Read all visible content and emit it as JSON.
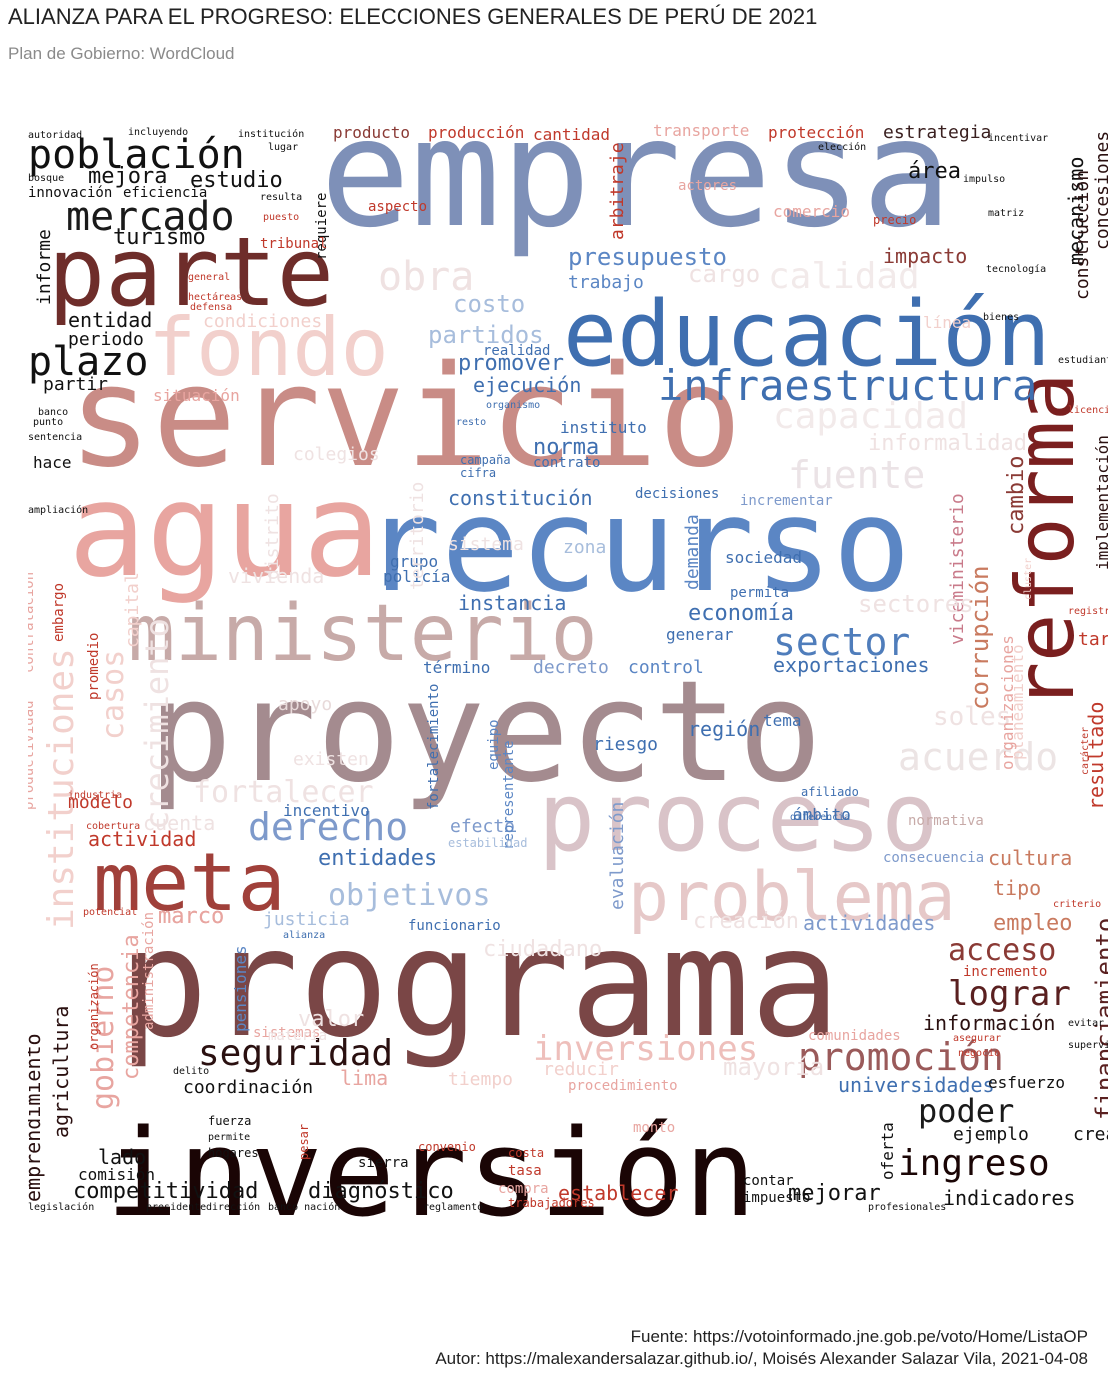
{
  "title": "ALIANZA PARA EL PROGRESO: ELECCIONES GENERALES DE PERÚ DE 2021",
  "subtitle": "Plan de Gobierno: WordCloud",
  "caption": {
    "source": "Fuente: https://votoinformado.jne.gob.pe/voto/Home/ListaOP",
    "author": "Autor: https://malexandersalazar.github.io/, Moisés Alexander Salazar Vila, 2021-04-08"
  },
  "wordcloud": {
    "colors": {
      "dark": "#1a0505",
      "brown": "#6e2d2a",
      "red": "#c0392b",
      "pink": "#e8a5a0",
      "rose": "#c98c86",
      "mauve": "#a48b8f",
      "lightmauve": "#d9c3c8",
      "blue": "#3f6fb0",
      "steel": "#7e90b8",
      "lightblue": "#a7bddc",
      "faint": "#efe2e2"
    },
    "words": [
      {
        "text": "empresa",
        "color": "#7e90b8"
      },
      {
        "text": "servicio",
        "color": "#c98c86"
      },
      {
        "text": "agua",
        "color": "#e8a5a0"
      },
      {
        "text": "recurso",
        "color": "#5b86c4"
      },
      {
        "text": "proyecto",
        "color": "#a48b8f"
      },
      {
        "text": "programa",
        "color": "#7a4646"
      },
      {
        "text": "inversión",
        "color": "#1a0505"
      },
      {
        "text": "parte",
        "color": "#6e2d2a"
      },
      {
        "text": "educación",
        "color": "#3f6fb0"
      },
      {
        "text": "fondo",
        "color": "#f2d0cc"
      },
      {
        "text": "ministerio",
        "color": "#c7aaa8"
      },
      {
        "text": "proceso",
        "color": "#d9c3c8"
      },
      {
        "text": "problema",
        "color": "#e6c8c8"
      },
      {
        "text": "meta",
        "color": "#a0403a"
      },
      {
        "text": "reforma",
        "color": "#7a1f1f"
      },
      {
        "text": "infraestructura",
        "color": "#3f6fb0"
      },
      {
        "text": "sector",
        "color": "#4f7dbb"
      },
      {
        "text": "población",
        "color": "#111111"
      },
      {
        "text": "mercado",
        "color": "#1a1a1a"
      },
      {
        "text": "plazo",
        "color": "#111111"
      },
      {
        "text": "derecho",
        "color": "#7e9acb"
      },
      {
        "text": "seguridad",
        "color": "#2a1010"
      },
      {
        "text": "promoción",
        "color": "#9a5a5a"
      },
      {
        "text": "ingreso",
        "color": "#1a0505"
      },
      {
        "text": "poder",
        "color": "#1a1a1a"
      },
      {
        "text": "lograr",
        "color": "#5a2020"
      },
      {
        "text": "acceso",
        "color": "#8a3a35"
      },
      {
        "text": "inversiones",
        "color": "#eebfbb"
      },
      {
        "text": "capacidad",
        "color": "#f2eaea"
      },
      {
        "text": "calidad",
        "color": "#f2eaea"
      },
      {
        "text": "fuente",
        "color": "#ebe3e6"
      },
      {
        "text": "acuerdo",
        "color": "#ece4e4"
      },
      {
        "text": "presupuesto",
        "color": "#5b86c4"
      },
      {
        "text": "partidos",
        "color": "#a7bddc"
      },
      {
        "text": "costo",
        "color": "#a7bddc"
      },
      {
        "text": "promover",
        "color": "#3f6fb0"
      },
      {
        "text": "ejecución",
        "color": "#3f6fb0"
      },
      {
        "text": "norma",
        "color": "#3f6fb0"
      },
      {
        "text": "constitución",
        "color": "#3f6fb0"
      },
      {
        "text": "instancia",
        "color": "#3f6fb0"
      },
      {
        "text": "economía",
        "color": "#3f6fb0"
      },
      {
        "text": "exportaciones",
        "color": "#3f6fb0"
      },
      {
        "text": "entidades",
        "color": "#3f6fb0"
      },
      {
        "text": "objetivos",
        "color": "#a7bddc"
      },
      {
        "text": "corrupción",
        "color": "#c97a5f"
      },
      {
        "text": "cambio",
        "color": "#8a3a35"
      },
      {
        "text": "mecanismo",
        "color": "#111111"
      },
      {
        "text": "impacto",
        "color": "#8a3a35"
      },
      {
        "text": "área",
        "color": "#111111"
      },
      {
        "text": "estrategia",
        "color": "#3a2020"
      },
      {
        "text": "protección",
        "color": "#c0392b"
      },
      {
        "text": "transporte",
        "color": "#e8a5a0"
      },
      {
        "text": "producción",
        "color": "#c0392b"
      },
      {
        "text": "producto",
        "color": "#8a3a35"
      },
      {
        "text": "cantidad",
        "color": "#c0392b"
      },
      {
        "text": "comercio",
        "color": "#e8a5a0"
      },
      {
        "text": "actores",
        "color": "#e8a5a0"
      },
      {
        "text": "estudio",
        "color": "#111111"
      },
      {
        "text": "mejora",
        "color": "#111111"
      },
      {
        "text": "turismo",
        "color": "#111111"
      },
      {
        "text": "entidad",
        "color": "#111111"
      },
      {
        "text": "periodo",
        "color": "#111111"
      },
      {
        "text": "partir",
        "color": "#111111"
      },
      {
        "text": "informe",
        "color": "#111111"
      },
      {
        "text": "condiciones",
        "color": "#f2d0cc"
      },
      {
        "text": "situación",
        "color": "#e8a5a0"
      },
      {
        "text": "modelo",
        "color": "#c0392b"
      },
      {
        "text": "actividad",
        "color": "#c0392b"
      },
      {
        "text": "marco",
        "color": "#e8a5a0"
      },
      {
        "text": "gobierno",
        "color": "#e8a5a0"
      },
      {
        "text": "instituciones",
        "color": "#f2d0cc"
      },
      {
        "text": "competencia",
        "color": "#e8a5a0"
      },
      {
        "text": "emprendimiento",
        "color": "#2a1010"
      },
      {
        "text": "agricultura",
        "color": "#2a1010"
      },
      {
        "text": "coordinación",
        "color": "#111111"
      },
      {
        "text": "competitividad",
        "color": "#111111"
      },
      {
        "text": "diagnóstico",
        "color": "#111111"
      },
      {
        "text": "lado",
        "color": "#111111"
      },
      {
        "text": "comisión",
        "color": "#111111"
      },
      {
        "text": "establecer",
        "color": "#c0392b"
      },
      {
        "text": "mejorar",
        "color": "#111111"
      },
      {
        "text": "indicadores",
        "color": "#111111"
      },
      {
        "text": "universidades",
        "color": "#3f6fb0"
      },
      {
        "text": "información",
        "color": "#2a1010"
      },
      {
        "text": "financiamiento",
        "color": "#5a2020"
      },
      {
        "text": "empleo",
        "color": "#c97a5f"
      },
      {
        "text": "tipo",
        "color": "#c97a5f"
      },
      {
        "text": "cultura",
        "color": "#c97a5f"
      },
      {
        "text": "resultado",
        "color": "#c0392b"
      },
      {
        "text": "tarifa",
        "color": "#c0392b"
      },
      {
        "text": "ejemplo",
        "color": "#111111"
      },
      {
        "text": "crear",
        "color": "#111111"
      },
      {
        "text": "esfuerzo",
        "color": "#111111"
      },
      {
        "text": "región",
        "color": "#3f6fb0"
      },
      {
        "text": "riesgo",
        "color": "#3f6fb0"
      },
      {
        "text": "control",
        "color": "#5b86c4"
      },
      {
        "text": "decreto",
        "color": "#7e9acb"
      },
      {
        "text": "término",
        "color": "#3f6fb0"
      },
      {
        "text": "generar",
        "color": "#3f6fb0"
      },
      {
        "text": "sociedad",
        "color": "#3f6fb0"
      },
      {
        "text": "demanda",
        "color": "#5b86c4"
      },
      {
        "text": "zona",
        "color": "#a7bddc"
      },
      {
        "text": "actividades",
        "color": "#7e9acb"
      },
      {
        "text": "justicia",
        "color": "#a7bddc"
      },
      {
        "text": "viceministerio",
        "color": "#c97a8a"
      },
      {
        "text": "construcción",
        "color": "#2a1010"
      },
      {
        "text": "concesiones",
        "color": "#2a1010"
      },
      {
        "text": "implementación",
        "color": "#2a1010"
      },
      {
        "text": "arbitraje",
        "color": "#c0392b"
      },
      {
        "text": "trabajo",
        "color": "#5b86c4"
      },
      {
        "text": "realidad",
        "color": "#3f6fb0"
      },
      {
        "text": "instituto",
        "color": "#3f6fb0"
      },
      {
        "text": "contrato",
        "color": "#3f6fb0"
      },
      {
        "text": "decisiones",
        "color": "#3f6fb0"
      },
      {
        "text": "incrementar",
        "color": "#7e9acb"
      },
      {
        "text": "grupo",
        "color": "#3f6fb0"
      },
      {
        "text": "policía",
        "color": "#3f6fb0"
      },
      {
        "text": "permita",
        "color": "#3f6fb0"
      },
      {
        "text": "tema",
        "color": "#3f6fb0"
      },
      {
        "text": "ámbito",
        "color": "#3f6fb0"
      },
      {
        "text": "efecto",
        "color": "#7e9acb"
      },
      {
        "text": "incentivo",
        "color": "#3f6fb0"
      },
      {
        "text": "evaluación",
        "color": "#7e9acb"
      },
      {
        "text": "representante",
        "color": "#5b86c4"
      },
      {
        "text": "equipo",
        "color": "#5b86c4"
      },
      {
        "text": "fortalecimiento",
        "color": "#3f6fb0"
      },
      {
        "text": "pensiones",
        "color": "#5b86c4"
      },
      {
        "text": "apoyo",
        "color": "#e8dada"
      },
      {
        "text": "fortalecer",
        "color": "#efe2e2"
      },
      {
        "text": "cuenta",
        "color": "#efe2e2"
      },
      {
        "text": "valor",
        "color": "#efe2e2"
      },
      {
        "text": "lima",
        "color": "#e8a5a0"
      },
      {
        "text": "tiempo",
        "color": "#f2d0cc"
      },
      {
        "text": "reducir",
        "color": "#f2d0cc"
      },
      {
        "text": "sistemas",
        "color": "#e8a5a0"
      },
      {
        "text": "procedimiento",
        "color": "#e8a5a0"
      },
      {
        "text": "comunidades",
        "color": "#e8a5a0"
      },
      {
        "text": "compra",
        "color": "#e8a5a0"
      },
      {
        "text": "tasa",
        "color": "#c0392b"
      },
      {
        "text": "impuesto",
        "color": "#111111"
      },
      {
        "text": "contar",
        "color": "#111111"
      },
      {
        "text": "hogares",
        "color": "#111111"
      },
      {
        "text": "fuerza",
        "color": "#111111"
      },
      {
        "text": "oferta",
        "color": "#111111"
      },
      {
        "text": "monto",
        "color": "#e8a5a0"
      },
      {
        "text": "incremento",
        "color": "#c0392b"
      },
      {
        "text": "institución",
        "color": "#111111"
      },
      {
        "text": "incluyendo",
        "color": "#111111"
      },
      {
        "text": "autoridad",
        "color": "#111111"
      },
      {
        "text": "innovación",
        "color": "#111111"
      },
      {
        "text": "eficiencia",
        "color": "#111111"
      },
      {
        "text": "bosque",
        "color": "#111111"
      },
      {
        "text": "resulta",
        "color": "#111111"
      },
      {
        "text": "lugar",
        "color": "#111111"
      },
      {
        "text": "requiere",
        "color": "#111111"
      },
      {
        "text": "tribunal",
        "color": "#c0392b"
      },
      {
        "text": "puesto",
        "color": "#c0392b"
      },
      {
        "text": "aspecto",
        "color": "#c0392b"
      },
      {
        "text": "defensa",
        "color": "#c0392b"
      },
      {
        "text": "general",
        "color": "#c0392b"
      },
      {
        "text": "hectáreas",
        "color": "#c0392b"
      },
      {
        "text": "hace",
        "color": "#111111"
      },
      {
        "text": "banco",
        "color": "#111111"
      },
      {
        "text": "punto",
        "color": "#111111"
      },
      {
        "text": "sentencia",
        "color": "#111111"
      },
      {
        "text": "ampliación",
        "color": "#111111"
      },
      {
        "text": "productividad",
        "color": "#e8a5a0"
      },
      {
        "text": "contratación",
        "color": "#e8a5a0"
      },
      {
        "text": "embargo",
        "color": "#c0392b"
      },
      {
        "text": "promedio",
        "color": "#c0392b"
      },
      {
        "text": "organización",
        "color": "#c0392b"
      },
      {
        "text": "administración",
        "color": "#e8a5a0"
      },
      {
        "text": "potencial",
        "color": "#c0392b"
      },
      {
        "text": "industria",
        "color": "#c0392b"
      },
      {
        "text": "cobertura",
        "color": "#c0392b"
      },
      {
        "text": "delito",
        "color": "#111111"
      },
      {
        "text": "permite",
        "color": "#111111"
      },
      {
        "text": "sierra",
        "color": "#111111"
      },
      {
        "text": "costa",
        "color": "#c0392b"
      },
      {
        "text": "convenio",
        "color": "#c0392b"
      },
      {
        "text": "pesar",
        "color": "#c0392b"
      },
      {
        "text": "legislación",
        "color": "#111111"
      },
      {
        "text": "dirección",
        "color": "#111111"
      },
      {
        "text": "banco nación",
        "color": "#111111"
      },
      {
        "text": "presidente",
        "color": "#111111"
      },
      {
        "text": "reglamento",
        "color": "#111111"
      },
      {
        "text": "trabajadores",
        "color": "#c0392b"
      },
      {
        "text": "profesionales",
        "color": "#111111"
      },
      {
        "text": "supervisión",
        "color": "#111111"
      },
      {
        "text": "evitar",
        "color": "#111111"
      },
      {
        "text": "asegurar",
        "color": "#c0392b"
      },
      {
        "text": "negocio",
        "color": "#c0392b"
      },
      {
        "text": "estabilidad",
        "color": "#a7bddc"
      },
      {
        "text": "consecuencia",
        "color": "#7e9acb"
      },
      {
        "text": "normativa",
        "color": "#c7aaa8"
      },
      {
        "text": "marco",
        "color": "#e8a5a0"
      },
      {
        "text": "ciudadano",
        "color": "#efe2e2"
      },
      {
        "text": "creación",
        "color": "#efe2e2"
      },
      {
        "text": "funcionario",
        "color": "#3f6fb0"
      },
      {
        "text": "alianza",
        "color": "#3f6fb0"
      },
      {
        "text": "elección",
        "color": "#111111"
      },
      {
        "text": "incentivar",
        "color": "#111111"
      },
      {
        "text": "matriz",
        "color": "#111111"
      },
      {
        "text": "precio",
        "color": "#c0392b"
      },
      {
        "text": "impulso",
        "color": "#111111"
      },
      {
        "text": "tecnología",
        "color": "#111111"
      },
      {
        "text": "bienes",
        "color": "#111111"
      },
      {
        "text": "estudiantes",
        "color": "#111111"
      },
      {
        "text": "licencia",
        "color": "#c0392b"
      },
      {
        "text": "registro",
        "color": "#c0392b"
      },
      {
        "text": "criterio",
        "color": "#c0392b"
      },
      {
        "text": "carácter",
        "color": "#c0392b"
      },
      {
        "text": "afiliado",
        "color": "#3f6fb0"
      },
      {
        "text": "diferencia",
        "color": "#3f6fb0"
      },
      {
        "text": "organismo",
        "color": "#3f6fb0"
      },
      {
        "text": "resto",
        "color": "#3f6fb0"
      },
      {
        "text": "campaña",
        "color": "#3f6fb0"
      },
      {
        "text": "cifra",
        "color": "#3f6fb0"
      },
      {
        "text": "mayoría",
        "color": "#efe2e2"
      },
      {
        "text": "territorio",
        "color": "#efe2e2"
      },
      {
        "text": "vivienda",
        "color": "#efe2e2"
      },
      {
        "text": "crecimiento",
        "color": "#efe2e2"
      },
      {
        "text": "casos",
        "color": "#f2d0cc"
      },
      {
        "text": "capital",
        "color": "#f2d0cc"
      },
      {
        "text": "existen",
        "color": "#efe2e2"
      },
      {
        "text": "sectores",
        "color": "#efe2e2"
      },
      {
        "text": "soles",
        "color": "#efe2e2"
      },
      {
        "text": "informalidad",
        "color": "#efe2e2"
      },
      {
        "text": "obra",
        "color": "#efe2e2"
      },
      {
        "text": "cargo",
        "color": "#efe2e2"
      },
      {
        "text": "línea",
        "color": "#f2d0cc"
      },
      {
        "text": "sistema",
        "color": "#efe2e2"
      },
      {
        "text": "colegios",
        "color": "#efe2e2"
      },
      {
        "text": "distrito",
        "color": "#efe2e2"
      },
      {
        "text": "materia",
        "color": "#efe2e2"
      },
      {
        "text": "planeamiento",
        "color": "#f2d0cc"
      },
      {
        "text": "organizaciones",
        "color": "#e8a5a0"
      },
      {
        "text": "cluster",
        "color": "#f2d0cc"
      }
    ]
  }
}
